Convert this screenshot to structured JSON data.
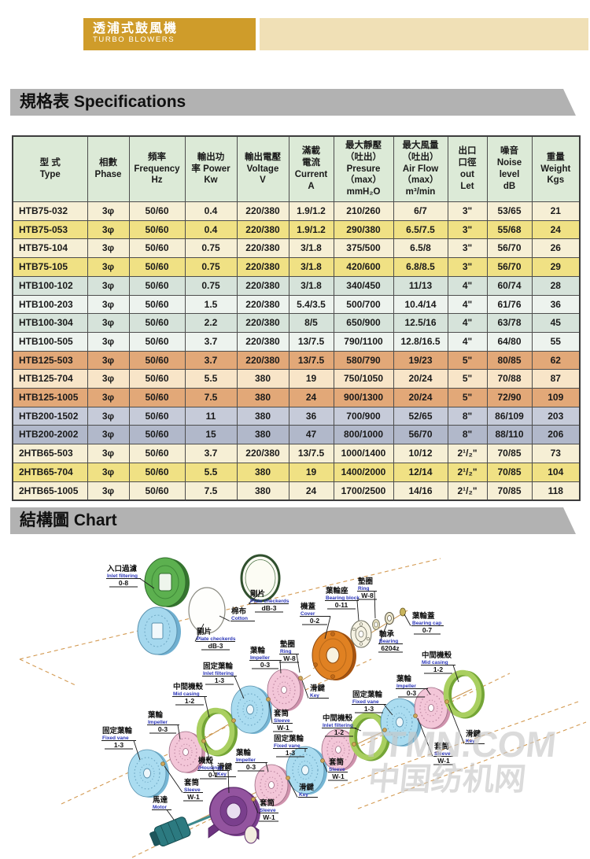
{
  "banner": {
    "title_zh": "透浦式鼓風機",
    "title_en": "TURBO BLOWERS"
  },
  "sections": {
    "specs": "規格表 Specifications",
    "chart": "結構圖 Chart"
  },
  "table": {
    "headers": [
      "型 式\nType",
      "相數\nPhase",
      "頻率\nFrequency\nHz",
      "輸出功\n率 Power\nKw",
      "輸出電壓\nVoltage\nV",
      "滿載\n電流\nCurrent\nA",
      "最大靜壓\n（吐出）\nPresure\n（max）\nmmH₂O",
      "最大風量\n（吐出）\nAir Flow\n（max）\nm³/min",
      "出口\n口徑\nout\nLet",
      "噪音\nNoise\nlevel\ndB",
      "重量\nWeight\nKgs"
    ],
    "rows": [
      [
        "HTB75-032",
        "3φ",
        "50/60",
        "0.4",
        "220/380",
        "1.9/1.2",
        "210/260",
        "6/7",
        "3\"",
        "53/65",
        "21"
      ],
      [
        "HTB75-053",
        "3φ",
        "50/60",
        "0.4",
        "220/380",
        "1.9/1.2",
        "290/380",
        "6.5/7.5",
        "3\"",
        "55/68",
        "24"
      ],
      [
        "HTB75-104",
        "3φ",
        "50/60",
        "0.75",
        "220/380",
        "3/1.8",
        "375/500",
        "6.5/8",
        "3\"",
        "56/70",
        "26"
      ],
      [
        "HTB75-105",
        "3φ",
        "50/60",
        "0.75",
        "220/380",
        "3/1.8",
        "420/600",
        "6.8/8.5",
        "3\"",
        "56/70",
        "29"
      ],
      [
        "HTB100-102",
        "3φ",
        "50/60",
        "0.75",
        "220/380",
        "3/1.8",
        "340/450",
        "11/13",
        "4\"",
        "60/74",
        "28"
      ],
      [
        "HTB100-203",
        "3φ",
        "50/60",
        "1.5",
        "220/380",
        "5.4/3.5",
        "500/700",
        "10.4/14",
        "4\"",
        "61/76",
        "36"
      ],
      [
        "HTB100-304",
        "3φ",
        "50/60",
        "2.2",
        "220/380",
        "8/5",
        "650/900",
        "12.5/16",
        "4\"",
        "63/78",
        "45"
      ],
      [
        "HTB100-505",
        "3φ",
        "50/60",
        "3.7",
        "220/380",
        "13/7.5",
        "790/1100",
        "12.8/16.5",
        "4\"",
        "64/80",
        "55"
      ],
      [
        "HTB125-503",
        "3φ",
        "50/60",
        "3.7",
        "220/380",
        "13/7.5",
        "580/790",
        "19/23",
        "5\"",
        "80/85",
        "62"
      ],
      [
        "HTB125-704",
        "3φ",
        "50/60",
        "5.5",
        "380",
        "19",
        "750/1050",
        "20/24",
        "5\"",
        "70/88",
        "87"
      ],
      [
        "HTB125-1005",
        "3φ",
        "50/60",
        "7.5",
        "380",
        "24",
        "900/1300",
        "20/24",
        "5\"",
        "72/90",
        "109"
      ],
      [
        "HTB200-1502",
        "3φ",
        "50/60",
        "11",
        "380",
        "36",
        "700/900",
        "52/65",
        "8\"",
        "86/109",
        "203"
      ],
      [
        "HTB200-2002",
        "3φ",
        "50/60",
        "15",
        "380",
        "47",
        "800/1000",
        "56/70",
        "8\"",
        "88/110",
        "206"
      ],
      [
        "2HTB65-503",
        "3φ",
        "50/60",
        "3.7",
        "220/380",
        "13/7.5",
        "1000/1400",
        "10/12",
        "2¹/₂\"",
        "70/85",
        "73"
      ],
      [
        "2HTB65-704",
        "3φ",
        "50/60",
        "5.5",
        "380",
        "19",
        "1400/2000",
        "12/14",
        "2¹/₂\"",
        "70/85",
        "104"
      ],
      [
        "2HTB65-1005",
        "3φ",
        "50/60",
        "7.5",
        "380",
        "24",
        "1700/2500",
        "14/16",
        "2¹/₂\"",
        "70/85",
        "118"
      ]
    ],
    "row_classes": [
      "cream",
      "yellow",
      "cream",
      "yellow",
      "teal",
      "mint",
      "teal",
      "mint",
      "orange",
      "peach",
      "orange",
      "slate",
      "slate2",
      "cream",
      "yellow",
      "cream"
    ],
    "group_starts": [
      4,
      8,
      11,
      13
    ]
  },
  "diagram": {
    "watermark_line1": "TTMN.COM",
    "watermark_line2": "中国纺机网",
    "parts": [
      {
        "zh": "入口過濾",
        "en": "Inlet filtering",
        "code": "0-8"
      },
      {
        "zh": "棉布",
        "en": "Cotton",
        "code": ""
      },
      {
        "zh": "剛片",
        "en": "Plate checkerds",
        "code": "dB-3"
      },
      {
        "zh": "剛片",
        "en": "Plate checkerds",
        "code": "dB-3"
      },
      {
        "zh": "機蓋",
        "en": "Cover",
        "code": "0-2"
      },
      {
        "zh": "葉輪座",
        "en": "Bearing block",
        "code": "0-11"
      },
      {
        "zh": "墊圈",
        "en": "Ring",
        "code": "W-8"
      },
      {
        "zh": "軸承",
        "en": "Bearing",
        "code": "6204z"
      },
      {
        "zh": "葉輪蓋",
        "en": "Bearing cap",
        "code": "0-7"
      },
      {
        "zh": "墊圈",
        "en": "Ring",
        "code": "W-8"
      },
      {
        "zh": "葉輪",
        "en": "Impeller",
        "code": "0-3"
      },
      {
        "zh": "固定葉輪",
        "en": "Inlet filtering",
        "code": "1-3"
      },
      {
        "zh": "中間機殼",
        "en": "Mid casing",
        "code": "1-2"
      },
      {
        "zh": "葉輪",
        "en": "Impeller",
        "code": "0-3"
      },
      {
        "zh": "固定葉輪",
        "en": "Fixed vane",
        "code": "1-3"
      },
      {
        "zh": "滑鍵",
        "en": "Key",
        "code": ""
      },
      {
        "zh": "套筒",
        "en": "Sleeve",
        "code": "W-1"
      },
      {
        "zh": "滑鍵",
        "en": "Key",
        "code": ""
      },
      {
        "zh": "套筒",
        "en": "Sleeve",
        "code": "W-1"
      },
      {
        "zh": "固定葉輪",
        "en": "Fixed vane",
        "code": "1-3"
      },
      {
        "zh": "葉輪",
        "en": "Impeller",
        "code": "0-3"
      },
      {
        "zh": "中間機殼",
        "en": "Mid casing",
        "code": "1-2"
      },
      {
        "zh": "中間機殼",
        "en": "Inlet filtering",
        "code": "1-2"
      },
      {
        "zh": "滑鍵",
        "en": "Key",
        "code": ""
      },
      {
        "zh": "套筒",
        "en": "Sleeve",
        "code": "W-1"
      },
      {
        "zh": "機殼",
        "en": "(Housing)",
        "code": "0-1"
      },
      {
        "zh": "馬達",
        "en": "Motor",
        "code": ""
      },
      {
        "zh": "葉輪",
        "en": "Impeller",
        "code": "0-3"
      },
      {
        "zh": "套筒",
        "en": "Sleeve",
        "code": "W-1"
      },
      {
        "zh": "滑鍵",
        "en": "Key",
        "code": ""
      },
      {
        "zh": "套筒",
        "en": "Sleeve",
        "code": "W-1"
      },
      {
        "zh": "固定葉輪",
        "en": "Fixed vane",
        "code": "1-3"
      }
    ]
  }
}
